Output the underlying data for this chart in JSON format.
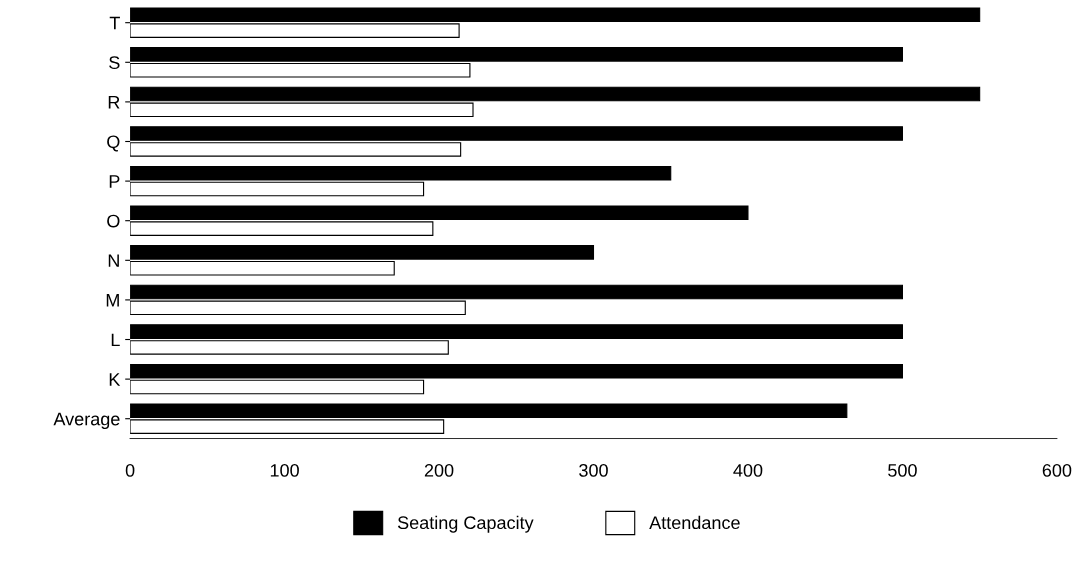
{
  "chart_data": {
    "type": "bar",
    "orientation": "horizontal",
    "categories": [
      "T",
      "S",
      "R",
      "Q",
      "P",
      "O",
      "N",
      "M",
      "L",
      "K",
      "Average"
    ],
    "series": [
      {
        "name": "Seating Capacity",
        "color": "#000000",
        "values": [
          550,
          500,
          550,
          500,
          350,
          400,
          300,
          500,
          500,
          500,
          464
        ]
      },
      {
        "name": "Attendance",
        "color": "#ffffff",
        "values": [
          213,
          220,
          222,
          214,
          190,
          196,
          171,
          217,
          206,
          190,
          203
        ]
      }
    ],
    "xlim": [
      0,
      600
    ],
    "xticks": [
      0,
      100,
      200,
      300,
      400,
      500,
      600
    ],
    "grid": false,
    "legend": "bottom"
  }
}
